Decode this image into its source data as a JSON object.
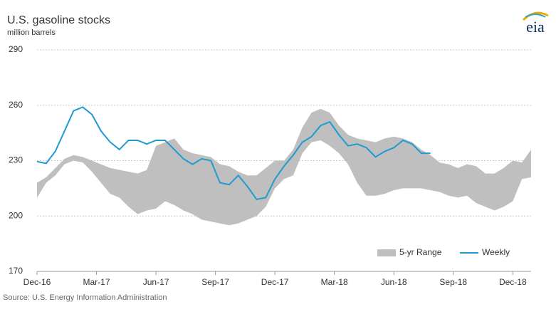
{
  "chart_data": {
    "type": "line",
    "title": "U.S. gasoline stocks",
    "subtitle": "million barrels",
    "source": "Source: U.S. Energy Information Administration",
    "logo": "eia",
    "x": [
      0,
      2,
      4,
      6,
      8,
      10,
      12,
      14,
      16,
      18,
      20,
      22,
      24,
      26,
      28,
      30,
      32,
      34,
      36,
      38,
      40,
      42,
      44,
      46,
      48,
      50,
      52,
      54,
      56,
      58,
      60,
      62,
      64,
      66,
      68,
      70,
      72,
      74,
      76,
      78,
      80,
      82,
      84,
      86,
      88,
      90,
      92,
      94,
      96,
      98,
      100,
      102,
      104,
      106,
      108
    ],
    "xlim": [
      0,
      108
    ],
    "xticks": [
      {
        "value": 0,
        "label": "Dec-16"
      },
      {
        "value": 13,
        "label": "Mar-17"
      },
      {
        "value": 26,
        "label": "Jun-17"
      },
      {
        "value": 39,
        "label": "Sep-17"
      },
      {
        "value": 52,
        "label": "Dec-17"
      },
      {
        "value": 65,
        "label": "Mar-18"
      },
      {
        "value": 78,
        "label": "Jun-18"
      },
      {
        "value": 91,
        "label": "Sep-18"
      },
      {
        "value": 104,
        "label": "Dec-18"
      }
    ],
    "ylim": [
      170,
      290
    ],
    "yticks": [
      170,
      200,
      230,
      260,
      290
    ],
    "grid": true,
    "legend": "bottom-right",
    "series": [
      {
        "name": "5-yr Range",
        "color": "#bfbfbf",
        "high": [
          218,
          221,
          226,
          231,
          233,
          232,
          230,
          228,
          226,
          225,
          224,
          223,
          225,
          238,
          240,
          242,
          236,
          234,
          233,
          232,
          228,
          227,
          224,
          222,
          222,
          226,
          230,
          230,
          236,
          248,
          256,
          258,
          256,
          249,
          244,
          242,
          241,
          240,
          242,
          243,
          242,
          240,
          236,
          233,
          229,
          228,
          226,
          228,
          227,
          223,
          223,
          226,
          230,
          229,
          236
        ],
        "low": [
          210,
          218,
          222,
          228,
          230,
          229,
          224,
          218,
          212,
          210,
          205,
          201,
          203,
          204,
          208,
          206,
          203,
          201,
          198,
          197,
          196,
          195,
          196,
          198,
          200,
          205,
          215,
          220,
          222,
          234,
          240,
          241,
          238,
          234,
          228,
          218,
          211,
          211,
          212,
          214,
          215,
          215,
          215,
          214,
          213,
          211,
          210,
          211,
          207,
          205,
          203,
          205,
          208,
          220,
          221
        ]
      },
      {
        "name": "Weekly",
        "color": "#1f9bd1",
        "values": [
          229.5,
          228.5,
          235,
          246,
          257,
          259,
          255,
          246,
          240,
          236,
          241,
          241,
          239,
          241,
          241,
          236,
          231,
          228,
          231,
          230,
          218,
          217,
          222,
          216,
          209,
          210,
          220,
          227,
          233,
          240,
          243,
          249,
          251,
          244,
          238,
          239,
          237,
          232,
          235,
          237,
          241,
          239,
          234,
          234,
          null,
          null,
          null,
          null,
          null,
          null,
          null,
          null,
          null,
          null,
          null
        ]
      }
    ]
  }
}
